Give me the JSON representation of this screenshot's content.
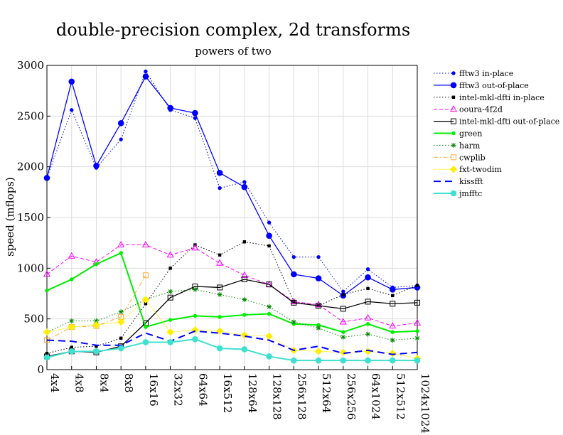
{
  "chart_data": {
    "type": "line",
    "title": "double-precision complex, 2d transforms",
    "subtitle": "powers of two",
    "ylabel": "speed (mflops)",
    "xlabel": "",
    "categories": [
      "4x4",
      "4x8",
      "8x4",
      "8x8",
      "16x16",
      "32x32",
      "64x64",
      "16x512",
      "128x64",
      "128x128",
      "256x128",
      "512x64",
      "256x256",
      "64x1024",
      "512x512",
      "1024x1024"
    ],
    "ylim": [
      0,
      3000
    ],
    "yticks": [
      0,
      500,
      1000,
      1500,
      2000,
      2500,
      3000
    ],
    "grid": true,
    "legend_position": "right",
    "series": [
      {
        "name": "fftw3 in-place",
        "color": "#0000ff",
        "dash": "dot",
        "marker": "circle-small",
        "values": [
          1890,
          2560,
          1990,
          2270,
          2940,
          2560,
          2480,
          1790,
          1850,
          1450,
          1110,
          1110,
          770,
          990,
          810,
          830
        ]
      },
      {
        "name": "fftw3 out-of-place",
        "color": "#0000ff",
        "dash": "solid",
        "marker": "circle",
        "values": [
          1890,
          2840,
          2010,
          2430,
          2890,
          2580,
          2530,
          1940,
          1800,
          1320,
          940,
          900,
          730,
          910,
          790,
          810
        ]
      },
      {
        "name": "intel-mkl-dfti in-place",
        "color": "#000000",
        "dash": "dot",
        "marker": "square-small",
        "values": [
          160,
          220,
          230,
          310,
          650,
          1000,
          1230,
          1130,
          1260,
          1220,
          670,
          630,
          740,
          800,
          730,
          830
        ]
      },
      {
        "name": "ooura-4f2d",
        "color": "#ff00ff",
        "dash": "dash",
        "marker": "triangle-open",
        "values": [
          940,
          1120,
          1060,
          1230,
          1230,
          1130,
          1200,
          1050,
          930,
          840,
          670,
          640,
          470,
          510,
          430,
          460
        ]
      },
      {
        "name": "intel-mkl-dfti out-of-place",
        "color": "#000000",
        "dash": "solid",
        "marker": "square-open",
        "values": [
          130,
          180,
          170,
          230,
          460,
          710,
          820,
          810,
          890,
          840,
          660,
          630,
          600,
          670,
          650,
          660
        ]
      },
      {
        "name": "green",
        "color": "#00ee00",
        "dash": "solid",
        "marker": "circle-small",
        "values": [
          780,
          890,
          1040,
          1150,
          420,
          490,
          530,
          520,
          540,
          550,
          450,
          440,
          370,
          450,
          370,
          380
        ]
      },
      {
        "name": "harm",
        "color": "#008800",
        "dash": "dot",
        "marker": "star",
        "values": [
          370,
          480,
          480,
          570,
          690,
          770,
          790,
          740,
          690,
          620,
          470,
          410,
          320,
          350,
          290,
          310
        ]
      },
      {
        "name": "cwplib",
        "color": "#ffaa33",
        "dash": "dashdot",
        "marker": "square-open",
        "values": [
          290,
          420,
          430,
          520,
          930,
          null,
          null,
          null,
          null,
          null,
          null,
          null,
          null,
          null,
          null,
          null
        ]
      },
      {
        "name": "fxt-twodim",
        "color": "#ffee00",
        "dash": "solid-thin",
        "marker": "diamond",
        "values": [
          370,
          420,
          440,
          470,
          690,
          370,
          390,
          380,
          340,
          330,
          190,
          180,
          170,
          180,
          160,
          110
        ]
      },
      {
        "name": "kissfft",
        "color": "#0000ff",
        "dash": "longdash",
        "marker": "none",
        "values": [
          290,
          280,
          240,
          240,
          360,
          280,
          380,
          360,
          330,
          290,
          190,
          230,
          160,
          190,
          150,
          170
        ]
      },
      {
        "name": "jmfftc",
        "color": "#40e0d0",
        "dash": "solid",
        "marker": "circle",
        "values": [
          120,
          180,
          180,
          210,
          270,
          270,
          300,
          210,
          200,
          130,
          90,
          90,
          90,
          90,
          90,
          90
        ]
      }
    ]
  }
}
